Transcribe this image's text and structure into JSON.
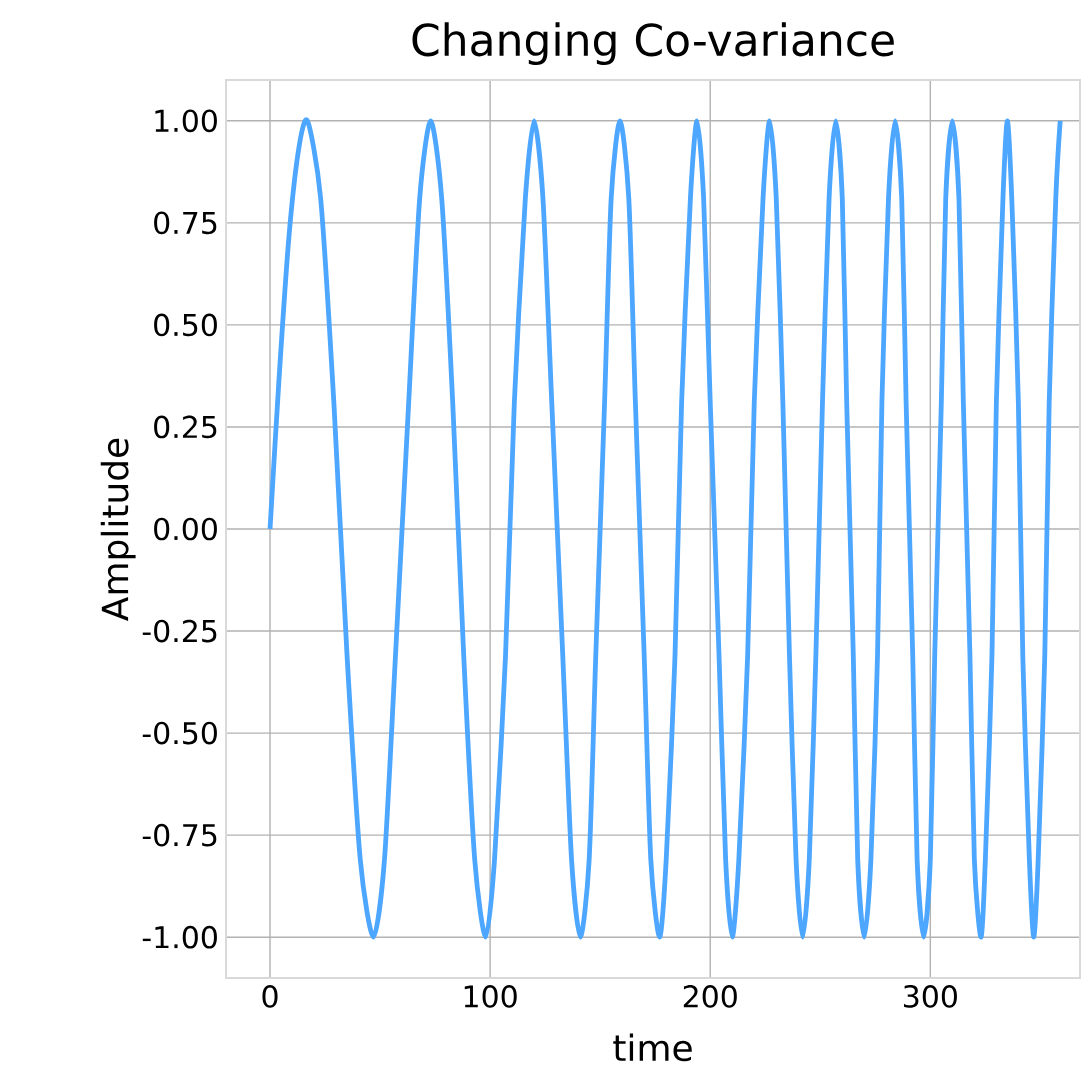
{
  "chart_data": {
    "type": "line",
    "title": "Changing Co-variance",
    "xlabel": "time",
    "ylabel": "Amplitude",
    "series": [
      {
        "color": "#4da6ff",
        "x": [
          0,
          4,
          8.5,
          13,
          17,
          23,
          29,
          35,
          41,
          47,
          52,
          57,
          63,
          68,
          73,
          78,
          83,
          88,
          93,
          98,
          102,
          107,
          111,
          116,
          120,
          124,
          128,
          133,
          137,
          141,
          145,
          148,
          152,
          155,
          159,
          163,
          166,
          170,
          173,
          177,
          180,
          184,
          187,
          191,
          194,
          197,
          200,
          204,
          207,
          210,
          213,
          217,
          220,
          224,
          227,
          230,
          233,
          236,
          239,
          242,
          245,
          248,
          251,
          254,
          257,
          260,
          262,
          265,
          267,
          270,
          273,
          276,
          278,
          281,
          284,
          287,
          289,
          292,
          294,
          297,
          300,
          302,
          305,
          307,
          310,
          313,
          315,
          318,
          320,
          323,
          325,
          328,
          330,
          333,
          335,
          337,
          340,
          342,
          345,
          347,
          349,
          352,
          354,
          357,
          359
        ],
        "values": [
          0,
          0.36,
          0.71,
          0.93,
          1,
          0.81,
          0.31,
          -0.31,
          -0.81,
          -1,
          -0.81,
          -0.31,
          0.31,
          0.81,
          1,
          0.81,
          0.31,
          -0.31,
          -0.81,
          -1,
          -0.81,
          -0.31,
          0.31,
          0.81,
          1,
          0.81,
          0.31,
          -0.31,
          -0.81,
          -1,
          -0.81,
          -0.31,
          0.31,
          0.81,
          1,
          0.81,
          0.31,
          -0.31,
          -0.81,
          -1,
          -0.81,
          -0.31,
          0.31,
          0.81,
          1,
          0.81,
          0.31,
          -0.31,
          -0.81,
          -1,
          -0.81,
          -0.31,
          0.31,
          0.81,
          1,
          0.81,
          0.31,
          -0.31,
          -0.81,
          -1,
          -0.81,
          -0.31,
          0.31,
          0.81,
          1,
          0.81,
          0.31,
          -0.31,
          -0.81,
          -1,
          -0.81,
          -0.31,
          0.31,
          0.81,
          1,
          0.81,
          0.31,
          -0.31,
          -0.81,
          -1,
          -0.81,
          -0.31,
          0.31,
          0.81,
          1,
          0.81,
          0.31,
          -0.31,
          -0.81,
          -1,
          -0.81,
          -0.31,
          0.31,
          0.81,
          1,
          0.81,
          0.31,
          -0.31,
          -0.81,
          -1,
          -0.81,
          -0.31,
          0.31,
          0.81,
          1
        ]
      }
    ],
    "xlim": [
      -20,
      368
    ],
    "ylim": [
      -1.1,
      1.1
    ],
    "xticks": [
      0,
      100,
      200,
      300
    ],
    "yticks": [
      {
        "value": -1,
        "label": "-1.00"
      },
      {
        "value": -0.75,
        "label": "-0.75"
      },
      {
        "value": -0.5,
        "label": "-0.50"
      },
      {
        "value": -0.25,
        "label": "-0.25"
      },
      {
        "value": 0,
        "label": "0.00"
      },
      {
        "value": 0.25,
        "label": "0.25"
      },
      {
        "value": 0.5,
        "label": "0.50"
      },
      {
        "value": 0.75,
        "label": "0.75"
      },
      {
        "value": 1,
        "label": "1.00"
      }
    ],
    "grid": true,
    "marker": "none",
    "line_style": "solid"
  }
}
